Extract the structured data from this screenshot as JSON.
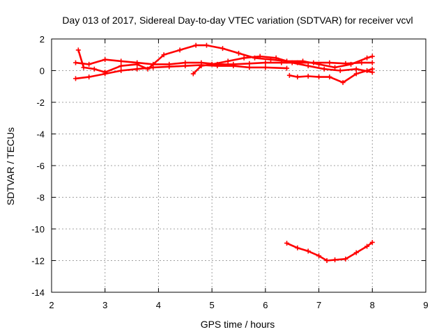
{
  "chart_data": {
    "type": "scatter",
    "title": "Day 013 of 2017, Sidereal Day-to-day VTEC variation (SDTVAR) for receiver vcvl",
    "xlabel": "GPS time / hours",
    "ylabel": "SDTVAR / TECUs",
    "xlim": [
      2,
      9
    ],
    "ylim": [
      -14,
      2
    ],
    "xticks": [
      2,
      3,
      4,
      5,
      6,
      7,
      8,
      9
    ],
    "yticks": [
      -14,
      -12,
      -10,
      -8,
      -6,
      -4,
      -2,
      0,
      2
    ],
    "grid": true,
    "legend": "none",
    "marker": "plus",
    "color": "#ff0000",
    "series": [
      {
        "x": [
          2.45,
          2.7,
          3.0,
          3.3,
          3.6,
          3.9,
          4.2,
          4.5,
          4.8,
          5.1,
          5.4,
          5.7,
          6.0,
          6.3,
          6.6,
          6.9,
          7.2,
          7.5,
          7.8,
          8.0
        ],
        "y": [
          0.5,
          0.4,
          0.7,
          0.6,
          0.5,
          0.4,
          0.4,
          0.5,
          0.5,
          0.4,
          0.4,
          0.45,
          0.5,
          0.5,
          0.5,
          0.5,
          0.5,
          0.45,
          0.5,
          0.5
        ]
      },
      {
        "x": [
          2.45,
          2.7,
          3.0,
          3.3,
          3.6,
          3.9,
          4.2,
          4.5,
          4.8,
          5.1,
          5.4,
          5.7,
          6.0,
          6.4
        ],
        "y": [
          -0.5,
          -0.4,
          -0.2,
          0.0,
          0.1,
          0.2,
          0.25,
          0.3,
          0.35,
          0.3,
          0.3,
          0.2,
          0.2,
          0.15
        ]
      },
      {
        "x": [
          2.5,
          2.6,
          2.8,
          3.0,
          3.3,
          3.6,
          3.8,
          4.1,
          4.4,
          4.7,
          4.9,
          5.2,
          5.5,
          5.8,
          6.1,
          6.4,
          6.7,
          7.0,
          7.3,
          7.6,
          7.9,
          8.0
        ],
        "y": [
          1.3,
          0.2,
          0.1,
          -0.1,
          0.3,
          0.4,
          0.1,
          1.0,
          1.3,
          1.6,
          1.6,
          1.4,
          1.1,
          0.8,
          0.7,
          0.6,
          0.6,
          0.4,
          0.2,
          0.4,
          0.8,
          0.9
        ]
      },
      {
        "x": [
          4.65,
          4.8,
          5.0,
          5.3,
          5.6,
          5.9,
          6.2,
          6.5,
          6.8,
          7.1,
          7.4,
          7.7,
          8.0
        ],
        "y": [
          -0.2,
          0.3,
          0.4,
          0.6,
          0.8,
          0.9,
          0.8,
          0.5,
          0.3,
          0.1,
          0.0,
          0.1,
          -0.1
        ]
      },
      {
        "x": [
          6.45,
          6.6,
          6.8,
          7.0,
          7.2,
          7.45,
          7.7,
          7.9,
          8.0
        ],
        "y": [
          -0.3,
          -0.4,
          -0.35,
          -0.4,
          -0.4,
          -0.75,
          -0.2,
          0.0,
          0.1
        ]
      },
      {
        "x": [
          6.4,
          6.6,
          6.8,
          7.0,
          7.15,
          7.3,
          7.5,
          7.7,
          7.9,
          8.0
        ],
        "y": [
          -10.9,
          -11.2,
          -11.4,
          -11.7,
          -12.0,
          -11.95,
          -11.9,
          -11.5,
          -11.1,
          -10.85
        ]
      }
    ]
  }
}
